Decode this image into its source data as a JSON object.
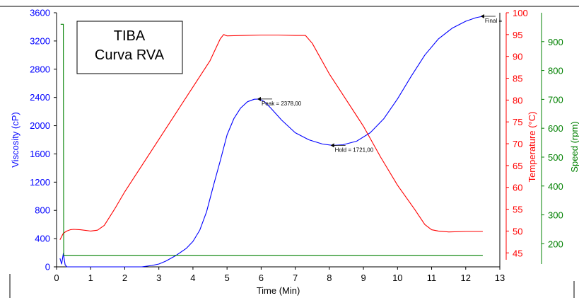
{
  "chart_data": {
    "type": "line",
    "title_box": [
      "TIBA",
      "Curva RVA"
    ],
    "xlabel": "Time  (Min)",
    "xlim": [
      0,
      13
    ],
    "x_ticks": [
      "0",
      "1",
      "2",
      "3",
      "4",
      "5",
      "6",
      "7",
      "8",
      "9",
      "10",
      "11",
      "12",
      "13"
    ],
    "axes": {
      "viscosity": {
        "label": "Viscosity (cP)",
        "range": [
          0,
          3600
        ],
        "color": "#0000ff",
        "ticks": [
          "0",
          "400",
          "800",
          "1200",
          "1600",
          "2000",
          "2400",
          "2800",
          "3200",
          "3600"
        ]
      },
      "temperature": {
        "label": "Temperature (°C)",
        "range": [
          41.8,
          100
        ],
        "color": "#ff0000",
        "ticks": [
          "45",
          "50",
          "55",
          "60",
          "65",
          "70",
          "75",
          "80",
          "85",
          "90",
          "95",
          "100"
        ]
      },
      "speed": {
        "label": "Speed (rpm)",
        "range": [
          120,
          1000
        ],
        "color": "#008000",
        "ticks": [
          "200",
          "300",
          "400",
          "500",
          "600",
          "700",
          "800",
          "900"
        ]
      }
    },
    "series": [
      {
        "name": "Viscosity",
        "axis": "viscosity",
        "color": "#0000ff",
        "x": [
          0.1,
          0.15,
          0.2,
          0.25,
          0.3,
          0.5,
          1,
          1.5,
          2,
          2.5,
          2.8,
          3,
          3.2,
          3.5,
          3.8,
          4,
          4.2,
          4.4,
          4.6,
          4.8,
          5,
          5.2,
          5.4,
          5.6,
          5.8,
          5.95,
          6.1,
          6.3,
          6.6,
          7,
          7.4,
          7.8,
          8.1,
          8.4,
          8.8,
          9.2,
          9.6,
          10,
          10.4,
          10.8,
          11.2,
          11.6,
          12,
          12.3,
          12.5
        ],
        "y": [
          120,
          40,
          190,
          30,
          0,
          0,
          0,
          0,
          0,
          0,
          20,
          40,
          80,
          160,
          260,
          360,
          520,
          780,
          1150,
          1500,
          1870,
          2100,
          2250,
          2340,
          2375,
          2378,
          2340,
          2240,
          2080,
          1900,
          1800,
          1740,
          1721,
          1730,
          1780,
          1900,
          2100,
          2380,
          2700,
          3000,
          3230,
          3380,
          3480,
          3530,
          3550
        ]
      },
      {
        "name": "Temperature",
        "axis": "temperature",
        "color": "#ff0000",
        "x": [
          0.1,
          0.2,
          0.3,
          0.4,
          0.5,
          0.7,
          1,
          1.2,
          1.4,
          1.7,
          2,
          2.5,
          3,
          3.5,
          4,
          4.5,
          4.8,
          4.9,
          5,
          5.5,
          6,
          6.5,
          7,
          7.3,
          7.5,
          8,
          8.5,
          9,
          9.5,
          10,
          10.5,
          10.8,
          11,
          11.2,
          11.5,
          12,
          12.5
        ],
        "y": [
          48,
          49.5,
          50,
          50.3,
          50.4,
          50.3,
          50,
          50.2,
          51.3,
          55,
          59,
          65,
          71,
          77,
          83,
          89,
          94,
          95,
          94.7,
          94.8,
          94.9,
          94.9,
          94.8,
          94.8,
          93,
          86,
          80,
          74,
          67,
          60.5,
          55,
          51.5,
          50.3,
          50,
          49.8,
          49.9,
          49.9
        ]
      },
      {
        "name": "Speed",
        "axis": "speed",
        "color": "#008000",
        "x": [
          0.12,
          0.13,
          0.2,
          0.21,
          12.5
        ],
        "y": [
          960,
          960,
          960,
          160,
          160
        ]
      }
    ],
    "annotations": [
      {
        "text": "Peak = 2378,00",
        "x": 5.95,
        "y": 2378,
        "axis": "viscosity"
      },
      {
        "text": "Hold = 1721,00",
        "x": 8.1,
        "y": 1721,
        "axis": "viscosity"
      },
      {
        "text": "Final =",
        "x": 12.5,
        "y": 3550,
        "axis": "viscosity"
      }
    ]
  }
}
